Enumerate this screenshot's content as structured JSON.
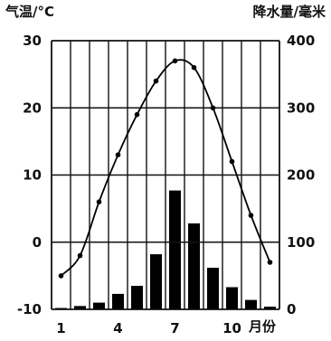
{
  "chart_data": {
    "type": "bar+line",
    "temperature_axis_label": "气温/°C",
    "precipitation_axis_label": "降水量/毫米",
    "x_unit_label": "月份",
    "x_tick_labels": [
      "1",
      "4",
      "7",
      "10"
    ],
    "temperature_ticks": [
      "30",
      "20",
      "10",
      "0",
      "-10"
    ],
    "precipitation_ticks": [
      "400",
      "300",
      "200",
      "100",
      "0"
    ],
    "temperature_range": [
      -10,
      30
    ],
    "precipitation_range": [
      0,
      400
    ],
    "months": [
      1,
      2,
      3,
      4,
      5,
      6,
      7,
      8,
      9,
      10,
      11,
      12
    ],
    "temperature": [
      -5,
      -2,
      6,
      13,
      19,
      24,
      27,
      26,
      20,
      12,
      4,
      -3
    ],
    "precipitation": [
      2,
      5,
      10,
      23,
      35,
      82,
      177,
      128,
      62,
      33,
      14,
      4
    ],
    "grid": true,
    "bar_color": "#000000",
    "line_color": "#000000"
  }
}
